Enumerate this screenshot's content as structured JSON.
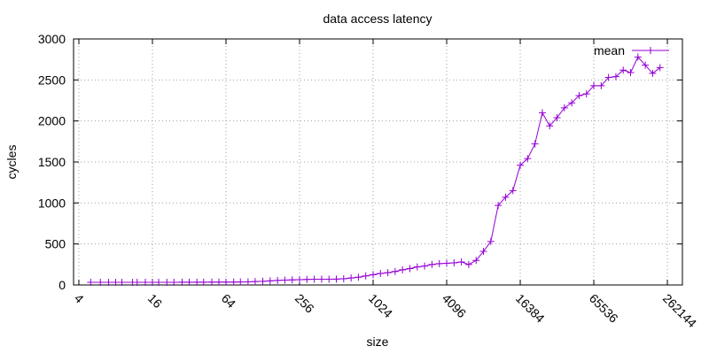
{
  "chart_data": {
    "type": "line",
    "title": "data access latency",
    "x_label": "size",
    "y_label": "cycles",
    "log_x": true,
    "log_base": 2,
    "grid": true,
    "legend": "upper right",
    "xlim": [
      3.62,
      348000
    ],
    "ylim": [
      0,
      3000
    ],
    "xticks": [
      4,
      16,
      64,
      256,
      1024,
      4096,
      16384,
      65536,
      262144
    ],
    "yticks": [
      0,
      500,
      1000,
      1500,
      2000,
      2500,
      3000
    ],
    "x": [
      5,
      6,
      7,
      8,
      9,
      11,
      12,
      14,
      16,
      18,
      21,
      24,
      28,
      32,
      37,
      42,
      49,
      56,
      64,
      74,
      84,
      97,
      111,
      128,
      147,
      169,
      194,
      223,
      256,
      294,
      338,
      388,
      446,
      512,
      588,
      676,
      776,
      891,
      1024,
      1176,
      1351,
      1552,
      1783,
      2048,
      2353,
      2702,
      3104,
      3566,
      4096,
      4705,
      5405,
      6208,
      7132,
      8192,
      9410,
      10809,
      12417,
      14263,
      16384,
      18820,
      21619,
      24834,
      28526,
      32768,
      37641,
      43238,
      49667,
      57052,
      65536,
      75281,
      86475,
      99334,
      114105,
      131072,
      150562,
      172951,
      198668,
      228210
    ],
    "series": [
      {
        "name": "mean",
        "color": "#9400d3",
        "values": [
          33,
          33,
          33,
          33,
          33,
          33,
          33,
          33,
          33,
          33,
          33,
          33,
          34,
          34,
          34,
          34,
          35,
          35,
          35,
          35,
          36,
          38,
          42,
          45,
          50,
          55,
          60,
          62,
          65,
          68,
          70,
          70,
          70,
          72,
          75,
          85,
          95,
          110,
          125,
          140,
          150,
          165,
          185,
          200,
          220,
          230,
          250,
          260,
          265,
          270,
          280,
          250,
          300,
          410,
          530,
          970,
          1070,
          1150,
          1460,
          1540,
          1720,
          2100,
          1940,
          2040,
          2160,
          2220,
          2310,
          2330,
          2430,
          2430,
          2530,
          2540,
          2620,
          2590,
          2780,
          2680,
          2580,
          2650
        ]
      }
    ]
  }
}
